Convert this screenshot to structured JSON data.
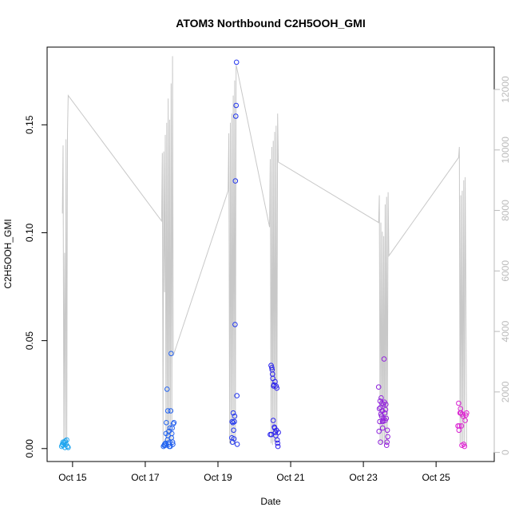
{
  "chart_data": {
    "type": "scatter",
    "title": "ATOM3 Northbound C2H5OOH_GMI",
    "xlabel": "Date",
    "ylabel": "C2H5OOH_GMI",
    "x_unit": "days (Oct 2017)",
    "xlim": [
      14.3,
      26.6
    ],
    "ylim": [
      -0.006,
      0.186
    ],
    "y2lim": [
      -300,
      13400
    ],
    "x_ticks": [
      {
        "value": 15,
        "label": "Oct 15"
      },
      {
        "value": 17,
        "label": "Oct 17"
      },
      {
        "value": 19,
        "label": "Oct 19"
      },
      {
        "value": 21,
        "label": "Oct 21"
      },
      {
        "value": 23,
        "label": "Oct 23"
      },
      {
        "value": 25,
        "label": "Oct 25"
      }
    ],
    "y_ticks": [
      {
        "value": 0.0,
        "label": "0.00"
      },
      {
        "value": 0.05,
        "label": "0.05"
      },
      {
        "value": 0.1,
        "label": "0.10"
      },
      {
        "value": 0.15,
        "label": "0.15"
      }
    ],
    "y2_ticks": [
      {
        "value": 0,
        "label": "0"
      },
      {
        "value": 2000,
        "label": "2000"
      },
      {
        "value": 4000,
        "label": "4000"
      },
      {
        "value": 6000,
        "label": "6000"
      },
      {
        "value": 8000,
        "label": "8000"
      },
      {
        "value": 10000,
        "label": "10000"
      },
      {
        "value": 12000,
        "label": "12000"
      }
    ],
    "altitude_line_color": "#c8c8c8",
    "point_colors": {
      "start": "#1fa8f0",
      "mid": "#2222ee",
      "end": "#e020d0"
    },
    "altitude": [
      [
        14.72,
        7900
      ],
      [
        14.74,
        10150
      ],
      [
        14.76,
        400
      ],
      [
        14.78,
        6600
      ],
      [
        14.8,
        150
      ],
      [
        14.82,
        10350
      ],
      [
        14.84,
        200
      ],
      [
        14.86,
        10550
      ],
      [
        14.88,
        11800
      ],
      [
        17.45,
        7650
      ],
      [
        17.47,
        9900
      ],
      [
        17.49,
        300
      ],
      [
        17.51,
        9950
      ],
      [
        17.53,
        5300
      ],
      [
        17.55,
        10500
      ],
      [
        17.57,
        300
      ],
      [
        17.59,
        10900
      ],
      [
        17.61,
        250
      ],
      [
        17.63,
        11700
      ],
      [
        17.65,
        400
      ],
      [
        17.67,
        11000
      ],
      [
        17.69,
        300
      ],
      [
        17.71,
        12200
      ],
      [
        17.73,
        250
      ],
      [
        17.75,
        13100
      ],
      [
        17.77,
        3200
      ],
      [
        19.28,
        8650
      ],
      [
        19.3,
        10550
      ],
      [
        19.32,
        300
      ],
      [
        19.34,
        10900
      ],
      [
        19.36,
        250
      ],
      [
        19.38,
        11200
      ],
      [
        19.4,
        400
      ],
      [
        19.42,
        11800
      ],
      [
        19.44,
        250
      ],
      [
        19.46,
        12300
      ],
      [
        19.48,
        300
      ],
      [
        19.5,
        12800
      ],
      [
        19.52,
        12700
      ],
      [
        20.42,
        7450
      ],
      [
        20.44,
        9700
      ],
      [
        20.46,
        300
      ],
      [
        20.48,
        10100
      ],
      [
        20.5,
        250
      ],
      [
        20.52,
        10300
      ],
      [
        20.54,
        350
      ],
      [
        20.56,
        10600
      ],
      [
        20.58,
        250
      ],
      [
        20.6,
        10800
      ],
      [
        20.62,
        300
      ],
      [
        20.64,
        11200
      ],
      [
        20.66,
        9600
      ],
      [
        23.42,
        7600
      ],
      [
        23.44,
        8500
      ],
      [
        23.46,
        300
      ],
      [
        23.48,
        7600
      ],
      [
        23.5,
        250
      ],
      [
        23.52,
        7300
      ],
      [
        23.54,
        300
      ],
      [
        23.56,
        7150
      ],
      [
        23.58,
        200
      ],
      [
        23.6,
        8200
      ],
      [
        23.62,
        250
      ],
      [
        23.64,
        8450
      ],
      [
        23.66,
        300
      ],
      [
        23.68,
        8600
      ],
      [
        23.7,
        6500
      ],
      [
        25.62,
        9750
      ],
      [
        25.64,
        10100
      ],
      [
        25.66,
        300
      ],
      [
        25.68,
        8500
      ],
      [
        25.7,
        250
      ],
      [
        25.72,
        8650
      ],
      [
        25.74,
        300
      ],
      [
        25.76,
        9000
      ],
      [
        25.78,
        250
      ],
      [
        25.8,
        9100
      ],
      [
        25.82,
        5300
      ],
      [
        25.84,
        200
      ]
    ],
    "points": [
      [
        14.7,
        0.001
      ],
      [
        14.72,
        0.002
      ],
      [
        14.74,
        0.003
      ],
      [
        14.76,
        0.0025
      ],
      [
        14.78,
        0.003
      ],
      [
        14.8,
        0.0035
      ],
      [
        14.82,
        0.002
      ],
      [
        14.84,
        0.004
      ],
      [
        14.86,
        0.001
      ],
      [
        14.88,
        0.0005
      ],
      [
        14.73,
        0.0015
      ],
      [
        14.79,
        0.0005
      ],
      [
        17.5,
        0.001
      ],
      [
        17.53,
        0.002
      ],
      [
        17.55,
        0.0015
      ],
      [
        17.57,
        0.007
      ],
      [
        17.58,
        0.012
      ],
      [
        17.6,
        0.0275
      ],
      [
        17.61,
        0.004
      ],
      [
        17.62,
        0.0175
      ],
      [
        17.63,
        0.006
      ],
      [
        17.64,
        0.002
      ],
      [
        17.65,
        0.008
      ],
      [
        17.66,
        0.001
      ],
      [
        17.67,
        0.003
      ],
      [
        17.68,
        0.0095
      ],
      [
        17.7,
        0.0175
      ],
      [
        17.71,
        0.044
      ],
      [
        17.72,
        0.005
      ],
      [
        17.73,
        0.007
      ],
      [
        17.74,
        0.0095
      ],
      [
        17.75,
        0.003
      ],
      [
        17.76,
        0.002
      ],
      [
        17.77,
        0.0115
      ],
      [
        17.79,
        0.012
      ],
      [
        17.52,
        0.0015
      ],
      [
        17.56,
        0.0025
      ],
      [
        17.69,
        0.001
      ],
      [
        19.38,
        0.005
      ],
      [
        19.4,
        0.003
      ],
      [
        19.41,
        0.012
      ],
      [
        19.42,
        0.0165
      ],
      [
        19.43,
        0.0085
      ],
      [
        19.44,
        0.0045
      ],
      [
        19.45,
        0.0125
      ],
      [
        19.46,
        0.015
      ],
      [
        19.47,
        0.0575
      ],
      [
        19.48,
        0.124
      ],
      [
        19.49,
        0.154
      ],
      [
        19.5,
        0.159
      ],
      [
        19.51,
        0.179
      ],
      [
        19.52,
        0.0245
      ],
      [
        19.53,
        0.002
      ],
      [
        19.39,
        0.0125
      ],
      [
        20.44,
        0.0065
      ],
      [
        20.46,
        0.0385
      ],
      [
        20.48,
        0.0375
      ],
      [
        20.5,
        0.0345
      ],
      [
        20.51,
        0.0325
      ],
      [
        20.52,
        0.013
      ],
      [
        20.53,
        0.029
      ],
      [
        20.54,
        0.0295
      ],
      [
        20.55,
        0.01
      ],
      [
        20.56,
        0.0095
      ],
      [
        20.57,
        0.031
      ],
      [
        20.58,
        0.0075
      ],
      [
        20.59,
        0.006
      ],
      [
        20.6,
        0.029
      ],
      [
        20.61,
        0.0085
      ],
      [
        20.62,
        0.028
      ],
      [
        20.63,
        0.004
      ],
      [
        20.64,
        0.0025
      ],
      [
        20.65,
        0.001
      ],
      [
        20.66,
        0.0075
      ],
      [
        20.47,
        0.0065
      ],
      [
        20.49,
        0.0365
      ],
      [
        23.42,
        0.0285
      ],
      [
        23.44,
        0.0185
      ],
      [
        23.45,
        0.0125
      ],
      [
        23.46,
        0.022
      ],
      [
        23.47,
        0.019
      ],
      [
        23.48,
        0.016
      ],
      [
        23.49,
        0.0235
      ],
      [
        23.5,
        0.015
      ],
      [
        23.51,
        0.021
      ],
      [
        23.52,
        0.0175
      ],
      [
        23.53,
        0.0125
      ],
      [
        23.54,
        0.013
      ],
      [
        23.55,
        0.0205
      ],
      [
        23.56,
        0.014
      ],
      [
        23.57,
        0.0415
      ],
      [
        23.58,
        0.0215
      ],
      [
        23.59,
        0.0165
      ],
      [
        23.6,
        0.013
      ],
      [
        23.61,
        0.018
      ],
      [
        23.62,
        0.0205
      ],
      [
        23.63,
        0.014
      ],
      [
        23.64,
        0.0015
      ],
      [
        23.65,
        0.003
      ],
      [
        23.66,
        0.0085
      ],
      [
        23.67,
        0.0055
      ],
      [
        23.43,
        0.008
      ],
      [
        23.47,
        0.003
      ],
      [
        23.53,
        0.0095
      ],
      [
        25.6,
        0.0105
      ],
      [
        25.62,
        0.021
      ],
      [
        25.63,
        0.0085
      ],
      [
        25.64,
        0.0105
      ],
      [
        25.66,
        0.0165
      ],
      [
        25.67,
        0.0185
      ],
      [
        25.68,
        0.0165
      ],
      [
        25.7,
        0.0105
      ],
      [
        25.72,
        0.016
      ],
      [
        25.74,
        0.015
      ],
      [
        25.76,
        0.002
      ],
      [
        25.78,
        0.001
      ],
      [
        25.8,
        0.013
      ],
      [
        25.82,
        0.0155
      ],
      [
        25.84,
        0.0165
      ],
      [
        25.71,
        0.0015
      ]
    ]
  }
}
